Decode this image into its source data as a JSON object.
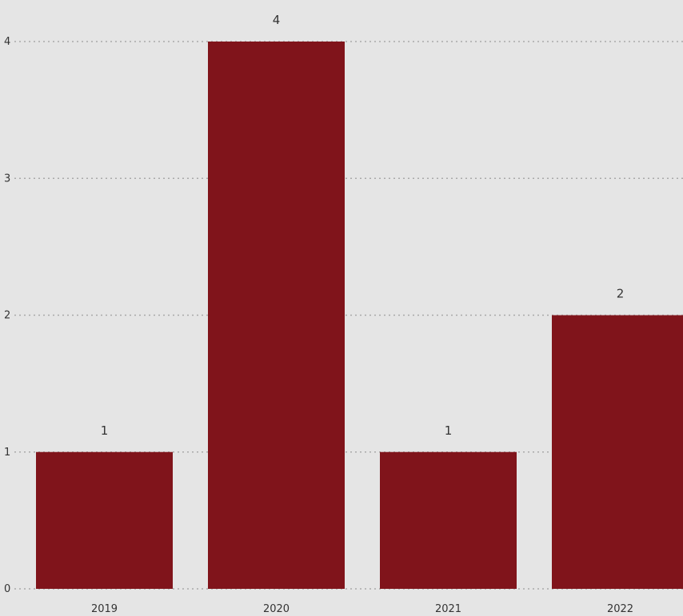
{
  "chart_data": {
    "type": "bar",
    "categories": [
      "2019",
      "2020",
      "2021",
      "2022"
    ],
    "values": [
      1,
      4,
      1,
      2
    ],
    "data_labels": [
      "1",
      "4",
      "1",
      "2"
    ],
    "yticks": [
      0,
      1,
      2,
      3,
      4
    ],
    "ylim": [
      0,
      4
    ],
    "grid": true,
    "bar_color": "#80141b",
    "background_color": "#e5e5e5",
    "title": "",
    "xlabel": "",
    "ylabel": ""
  }
}
